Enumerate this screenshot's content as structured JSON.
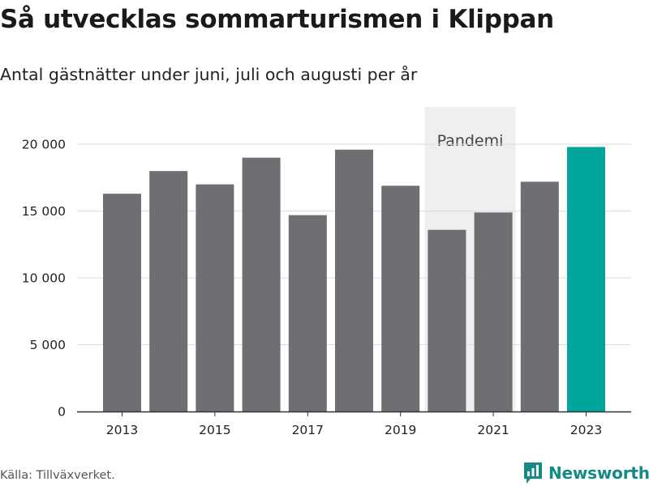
{
  "title": "Så utvecklas sommarturismen i Klippan",
  "subtitle": "Antal gästnätter under juni, juli och augusti per år",
  "source": "Källa: Tillväxverket.",
  "brand": {
    "name": "Newsworthy",
    "icon": "bar-chart-flag-icon"
  },
  "colors": {
    "bar": "#6f6e73",
    "highlight": "#00a69c",
    "band": "#efefef",
    "grid": "#dddddd",
    "brand": "#138a86"
  },
  "chart_data": {
    "type": "bar",
    "title": "Så utvecklas sommarturismen i Klippan",
    "subtitle": "Antal gästnätter under juni, juli och augusti per år",
    "xlabel": "",
    "ylabel": "",
    "categories": [
      "2013",
      "2014",
      "2015",
      "2016",
      "2017",
      "2018",
      "2019",
      "2020",
      "2021",
      "2022",
      "2023"
    ],
    "values": [
      16300,
      18000,
      17000,
      19000,
      14700,
      19600,
      16900,
      13600,
      14900,
      17200,
      19800
    ],
    "highlight_index": 10,
    "ylim": [
      0,
      22800
    ],
    "y_ticks": [
      {
        "value": 0,
        "label": "0"
      },
      {
        "value": 5000,
        "label": "5 000"
      },
      {
        "value": 10000,
        "label": "10 000"
      },
      {
        "value": 15000,
        "label": "15 000"
      },
      {
        "value": 20000,
        "label": "20 000"
      }
    ],
    "x_tick_labels": [
      "2013",
      "2015",
      "2017",
      "2019",
      "2021",
      "2023"
    ],
    "grid": true,
    "annotation": {
      "label": "Pandemi",
      "from": "2020",
      "to": "2021"
    }
  }
}
